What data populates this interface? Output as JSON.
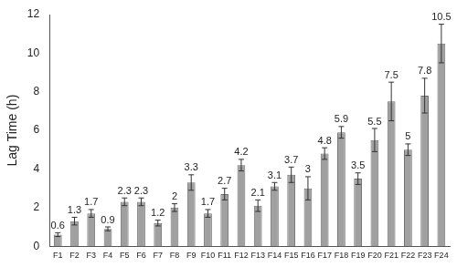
{
  "chart_data": {
    "type": "bar",
    "y_label": "Lag Time (h)",
    "categories": [
      "F1",
      "F2",
      "F3",
      "F4",
      "F5",
      "F6",
      "F7",
      "F8",
      "F9",
      "F10",
      "F11",
      "F12",
      "F13",
      "F14",
      "F15",
      "F16",
      "F17",
      "F18",
      "F19",
      "F20",
      "F21",
      "F22",
      "F23",
      "F24"
    ],
    "values": [
      0.6,
      1.3,
      1.7,
      0.9,
      2.3,
      2.3,
      1.2,
      2.0,
      3.3,
      1.7,
      2.7,
      4.2,
      2.1,
      3.1,
      3.7,
      3.0,
      4.8,
      5.9,
      3.5,
      5.5,
      7.5,
      5.0,
      7.8,
      10.5
    ],
    "errors": [
      0.1,
      0.2,
      0.2,
      0.1,
      0.2,
      0.2,
      0.15,
      0.2,
      0.4,
      0.2,
      0.3,
      0.3,
      0.3,
      0.2,
      0.4,
      0.6,
      0.3,
      0.3,
      0.3,
      0.6,
      1.0,
      0.3,
      0.9,
      1.0
    ],
    "color": "#a0a0a0",
    "ylim": [
      0,
      12
    ],
    "yticks": [
      0,
      2,
      4,
      6,
      8,
      10,
      12
    ],
    "grid": false,
    "data_labels": true
  }
}
